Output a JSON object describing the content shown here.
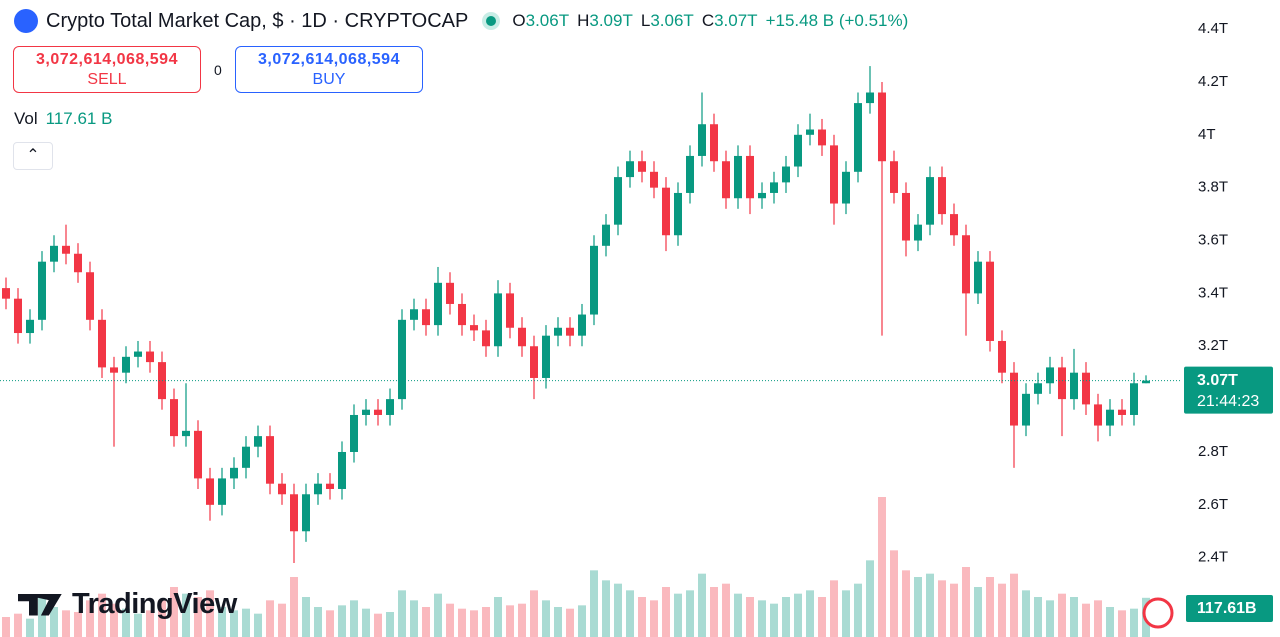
{
  "header": {
    "title": "Crypto Total Market Cap, $ · 1D · CRYPTOCAP",
    "ohlc": [
      {
        "key": "O",
        "value": "3.06T"
      },
      {
        "key": "H",
        "value": "3.09T"
      },
      {
        "key": "L",
        "value": "3.06T"
      },
      {
        "key": "C",
        "value": "3.07T"
      }
    ],
    "change": "+15.48 B (+0.51%)"
  },
  "order_panel": {
    "sell_price": "3,072,614,068,594",
    "sell_label": "SELL",
    "spread": "0",
    "buy_price": "3,072,614,068,594",
    "buy_label": "BUY"
  },
  "volume_legend": {
    "label": "Vol",
    "value": "117.61 B"
  },
  "branding": "TradingView",
  "chart_data": {
    "type": "candlestick",
    "grid": false,
    "up_color": "#089981",
    "down_color": "#f23645",
    "ylim": [
      2.1,
      4.51
    ],
    "yticks": [
      {
        "value": 4.4,
        "label": "4.4T"
      },
      {
        "value": 4.2,
        "label": "4.2T"
      },
      {
        "value": 4,
        "label": "4T"
      },
      {
        "value": 3.8,
        "label": "3.8T"
      },
      {
        "value": 3.6,
        "label": "3.6T"
      },
      {
        "value": 3.4,
        "label": "3.4T"
      },
      {
        "value": 3.2,
        "label": "3.2T"
      },
      {
        "value": 2.8,
        "label": "2.8T"
      },
      {
        "value": 2.6,
        "label": "2.6T"
      },
      {
        "value": 2.4,
        "label": "2.4T"
      }
    ],
    "open": [
      3.42,
      3.38,
      3.25,
      3.3,
      3.52,
      3.58,
      3.55,
      3.48,
      3.3,
      3.12,
      3.1,
      3.16,
      3.18,
      3.14,
      3.0,
      2.86,
      2.88,
      2.7,
      2.6,
      2.7,
      2.74,
      2.82,
      2.86,
      2.68,
      2.64,
      2.5,
      2.64,
      2.68,
      2.66,
      2.8,
      2.94,
      2.96,
      2.94,
      3.0,
      3.3,
      3.34,
      3.28,
      3.44,
      3.36,
      3.28,
      3.26,
      3.2,
      3.4,
      3.27,
      3.2,
      3.08,
      3.24,
      3.27,
      3.24,
      3.32,
      3.58,
      3.66,
      3.84,
      3.9,
      3.86,
      3.8,
      3.62,
      3.78,
      3.92,
      4.04,
      3.9,
      3.76,
      3.92,
      3.76,
      3.78,
      3.82,
      3.88,
      4.0,
      4.02,
      3.96,
      3.74,
      3.86,
      4.12,
      4.16,
      3.9,
      3.78,
      3.6,
      3.66,
      3.84,
      3.7,
      3.62,
      3.4,
      3.52,
      3.22,
      3.1,
      2.9,
      3.02,
      3.06,
      3.12,
      3.0,
      3.1,
      2.98,
      2.9,
      2.96,
      2.94,
      3.06
    ],
    "high": [
      3.46,
      3.42,
      3.34,
      3.56,
      3.62,
      3.66,
      3.59,
      3.52,
      3.34,
      3.16,
      3.2,
      3.22,
      3.22,
      3.18,
      3.04,
      3.06,
      2.92,
      2.74,
      2.74,
      2.78,
      2.86,
      2.9,
      2.9,
      2.72,
      2.68,
      2.68,
      2.72,
      2.72,
      2.84,
      2.98,
      3.0,
      3.0,
      3.04,
      3.34,
      3.38,
      3.38,
      3.5,
      3.48,
      3.4,
      3.32,
      3.3,
      3.45,
      3.44,
      3.31,
      3.24,
      3.28,
      3.31,
      3.31,
      3.36,
      3.62,
      3.7,
      3.88,
      3.94,
      3.94,
      3.9,
      3.84,
      3.82,
      3.96,
      4.16,
      4.08,
      3.94,
      3.96,
      3.96,
      3.82,
      3.86,
      3.92,
      4.04,
      4.08,
      4.06,
      4.0,
      3.9,
      4.16,
      4.26,
      4.2,
      3.94,
      3.82,
      3.7,
      3.88,
      3.88,
      3.74,
      3.66,
      3.56,
      3.56,
      3.26,
      3.14,
      3.06,
      3.1,
      3.16,
      3.16,
      3.19,
      3.14,
      3.02,
      3.0,
      3.0,
      3.1,
      3.09
    ],
    "low": [
      3.34,
      3.21,
      3.21,
      3.26,
      3.48,
      3.51,
      3.44,
      3.26,
      3.08,
      2.82,
      3.06,
      3.12,
      3.1,
      2.96,
      2.82,
      2.82,
      2.66,
      2.54,
      2.56,
      2.66,
      2.7,
      2.78,
      2.64,
      2.6,
      2.38,
      2.46,
      2.6,
      2.62,
      2.62,
      2.76,
      2.9,
      2.9,
      2.9,
      2.96,
      3.26,
      3.24,
      3.24,
      3.32,
      3.24,
      3.22,
      3.16,
      3.16,
      3.23,
      3.16,
      3.0,
      3.04,
      3.2,
      3.2,
      3.2,
      3.28,
      3.54,
      3.62,
      3.8,
      3.82,
      3.76,
      3.56,
      3.58,
      3.74,
      3.88,
      3.86,
      3.72,
      3.72,
      3.7,
      3.72,
      3.74,
      3.78,
      3.84,
      3.96,
      3.92,
      3.66,
      3.7,
      3.82,
      4.08,
      3.24,
      3.74,
      3.54,
      3.56,
      3.62,
      3.66,
      3.58,
      3.24,
      3.36,
      3.18,
      3.06,
      2.74,
      2.86,
      2.98,
      3.02,
      2.86,
      2.96,
      2.94,
      2.84,
      2.86,
      2.9,
      2.9,
      3.06
    ],
    "close": [
      3.38,
      3.25,
      3.3,
      3.52,
      3.58,
      3.55,
      3.48,
      3.3,
      3.12,
      3.1,
      3.16,
      3.18,
      3.14,
      3.0,
      2.86,
      2.88,
      2.7,
      2.6,
      2.7,
      2.74,
      2.82,
      2.86,
      2.68,
      2.64,
      2.5,
      2.64,
      2.68,
      2.66,
      2.8,
      2.94,
      2.96,
      2.94,
      3.0,
      3.3,
      3.34,
      3.28,
      3.44,
      3.36,
      3.28,
      3.26,
      3.2,
      3.4,
      3.27,
      3.2,
      3.08,
      3.24,
      3.27,
      3.24,
      3.32,
      3.58,
      3.66,
      3.84,
      3.9,
      3.86,
      3.8,
      3.62,
      3.78,
      3.92,
      4.04,
      3.9,
      3.76,
      3.92,
      3.76,
      3.78,
      3.82,
      3.88,
      4.0,
      4.02,
      3.96,
      3.74,
      3.86,
      4.12,
      4.16,
      3.9,
      3.78,
      3.6,
      3.66,
      3.84,
      3.7,
      3.62,
      3.4,
      3.52,
      3.22,
      3.1,
      2.9,
      3.02,
      3.06,
      3.12,
      3.0,
      3.1,
      2.98,
      2.9,
      2.96,
      2.94,
      3.06,
      3.07
    ],
    "volume_lim": [
      0,
      480
    ],
    "volume": [
      60,
      70,
      55,
      120,
      90,
      80,
      75,
      110,
      130,
      100,
      85,
      70,
      80,
      110,
      150,
      130,
      120,
      140,
      90,
      80,
      85,
      70,
      110,
      100,
      180,
      120,
      90,
      80,
      95,
      110,
      85,
      70,
      75,
      140,
      110,
      90,
      130,
      100,
      85,
      80,
      90,
      120,
      95,
      100,
      140,
      110,
      90,
      85,
      95,
      200,
      170,
      160,
      140,
      120,
      110,
      150,
      130,
      140,
      190,
      150,
      160,
      130,
      120,
      110,
      100,
      120,
      130,
      140,
      120,
      170,
      140,
      160,
      230,
      420,
      260,
      200,
      180,
      190,
      170,
      160,
      210,
      150,
      180,
      160,
      190,
      140,
      120,
      110,
      130,
      120,
      100,
      110,
      90,
      80,
      85,
      117.61
    ],
    "last_price": {
      "value": 3.07,
      "label": "3.07T"
    },
    "countdown": "21:44:23",
    "volume_label": "117.61B"
  }
}
